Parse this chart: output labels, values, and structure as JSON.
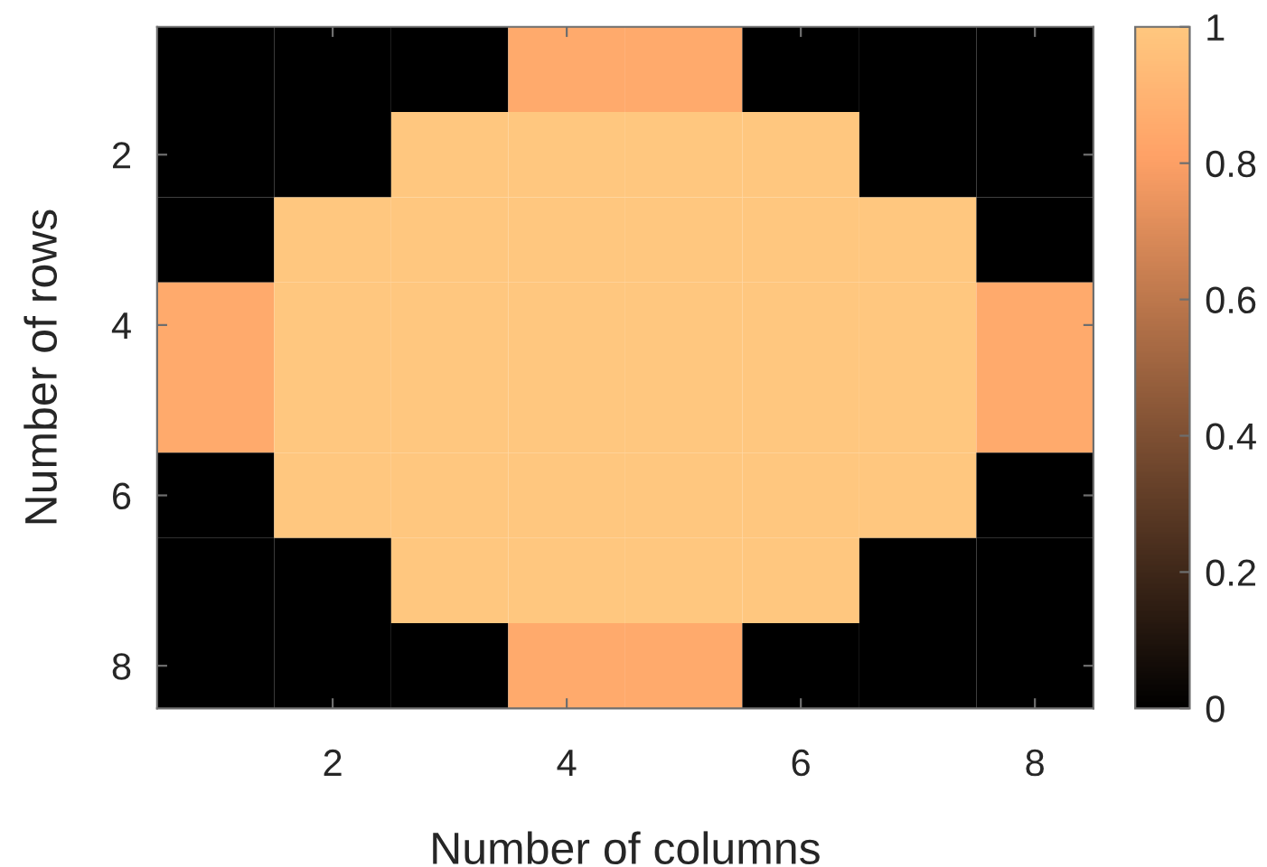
{
  "chart_data": {
    "type": "heatmap",
    "xlabel": "Number of columns",
    "ylabel": "Number of rows",
    "categories": [
      null,
      "2",
      null,
      "4",
      null,
      "6",
      null,
      "8"
    ],
    "y_categories": [
      null,
      "2",
      null,
      "4",
      null,
      "6",
      null,
      "8"
    ],
    "cells": [
      [
        0,
        0,
        0,
        0.85,
        0.85,
        0,
        0,
        0
      ],
      [
        0,
        0,
        1,
        1,
        1,
        1,
        0,
        0
      ],
      [
        0,
        1,
        1,
        1,
        1,
        1,
        1,
        0
      ],
      [
        0.85,
        1,
        1,
        1,
        1,
        1,
        1,
        0.85
      ],
      [
        0.85,
        1,
        1,
        1,
        1,
        1,
        1,
        0.85
      ],
      [
        0,
        1,
        1,
        1,
        1,
        1,
        1,
        0
      ],
      [
        0,
        0,
        1,
        1,
        1,
        1,
        0,
        0
      ],
      [
        0,
        0,
        0,
        0.85,
        0.85,
        0,
        0,
        0
      ]
    ],
    "clim": [
      0,
      1
    ],
    "cticks": [
      0,
      0.2,
      0.4,
      0.6,
      0.8,
      1
    ]
  }
}
